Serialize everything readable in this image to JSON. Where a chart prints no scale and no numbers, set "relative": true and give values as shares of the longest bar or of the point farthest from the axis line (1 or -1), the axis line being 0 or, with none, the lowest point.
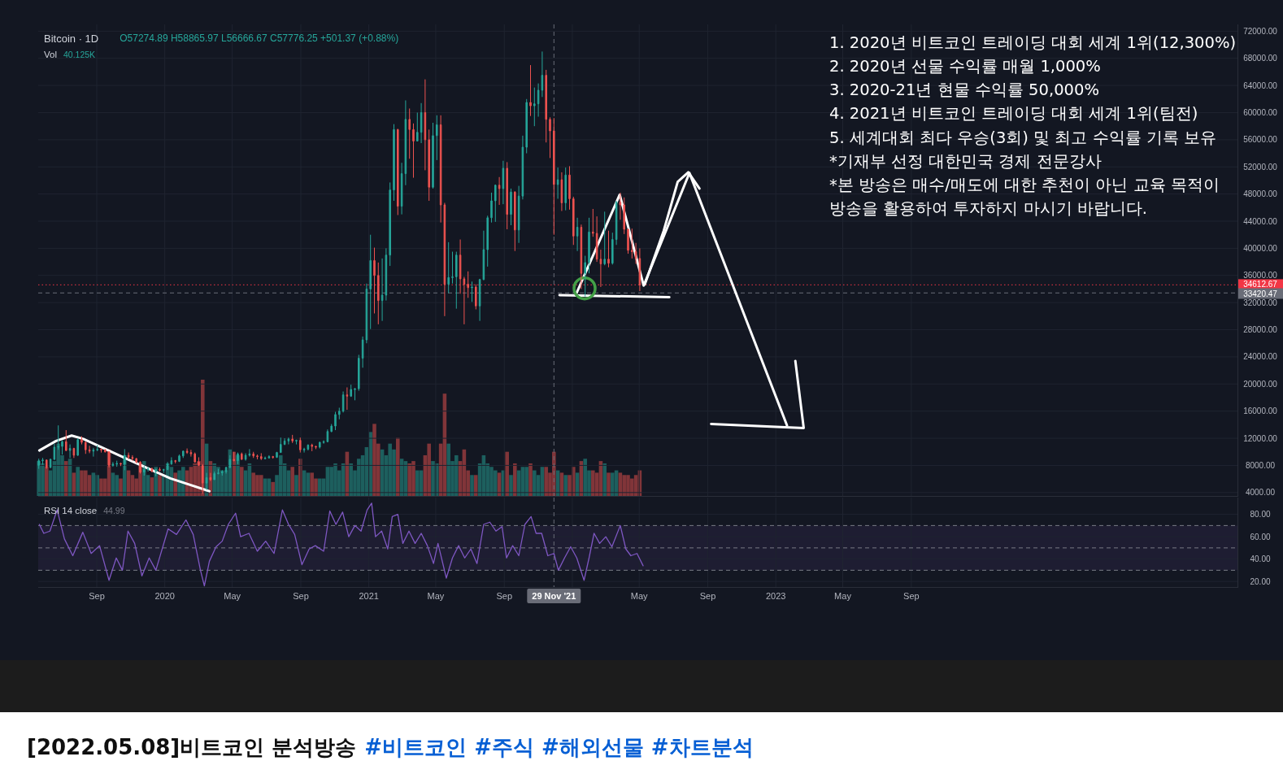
{
  "chart_data": [
    {
      "type": "candlestick",
      "title": "Bitcoin · 1D",
      "subtitle": "O57274.89 H58865.97 L56666.67 C57776.25 +501.37 (+0.88%)",
      "annotations": [
        "1. 2020년 비트코인 트레이딩 대회 세계 1위(12,300%)",
        "2. 2020년 선물 수익률 매월 1,000%",
        "3. 2020-21년 현물 수익률 50,000%",
        "4. 2021년 비트코인 트레이딩 대회 세계 1위(팀전)",
        "5. 세계대회 최다 우승(3회) 및 최고 수익률 기록 보유",
        "*기재부 선정 대한민국 경제 전문강사",
        "*본 방송은 매수/매도에 대한 추천이 아닌 교육 목적이",
        "방송을 활용하여 투자하지 마시기 바랍니다."
      ],
      "x": [
        "2019-05-20",
        "2019-05-27",
        "2019-06-03",
        "2019-06-10",
        "2019-06-17",
        "2019-06-24",
        "2019-07-01",
        "2019-07-08",
        "2019-07-15",
        "2019-07-22",
        "2019-07-29",
        "2019-08-05",
        "2019-08-12",
        "2019-08-19",
        "2019-08-26",
        "2019-09-02",
        "2019-09-09",
        "2019-09-16",
        "2019-09-23",
        "2019-09-30",
        "2019-10-07",
        "2019-10-14",
        "2019-10-21",
        "2019-10-28",
        "2019-11-04",
        "2019-11-11",
        "2019-11-18",
        "2019-11-25",
        "2019-12-02",
        "2019-12-09",
        "2019-12-16",
        "2019-12-23",
        "2019-12-30",
        "2020-01-06",
        "2020-01-13",
        "2020-01-20",
        "2020-01-27",
        "2020-02-03",
        "2020-02-10",
        "2020-02-17",
        "2020-02-24",
        "2020-03-02",
        "2020-03-09",
        "2020-03-16",
        "2020-03-23",
        "2020-03-30",
        "2020-04-06",
        "2020-04-13",
        "2020-04-20",
        "2020-04-27",
        "2020-05-04",
        "2020-05-11",
        "2020-05-18",
        "2020-05-25",
        "2020-06-01",
        "2020-06-08",
        "2020-06-15",
        "2020-06-22",
        "2020-06-29",
        "2020-07-06",
        "2020-07-13",
        "2020-07-20",
        "2020-07-27",
        "2020-08-03",
        "2020-08-10",
        "2020-08-17",
        "2020-08-24",
        "2020-08-31",
        "2020-09-07",
        "2020-09-14",
        "2020-09-21",
        "2020-09-28",
        "2020-10-05",
        "2020-10-12",
        "2020-10-19",
        "2020-10-26",
        "2020-11-02",
        "2020-11-09",
        "2020-11-16",
        "2020-11-23",
        "2020-11-30",
        "2020-12-07",
        "2020-12-14",
        "2020-12-21",
        "2020-12-28",
        "2021-01-04",
        "2021-01-11",
        "2021-01-18",
        "2021-01-25",
        "2021-02-01",
        "2021-02-08",
        "2021-02-15",
        "2021-02-22",
        "2021-03-01",
        "2021-03-08",
        "2021-03-15",
        "2021-03-22",
        "2021-03-29",
        "2021-04-05",
        "2021-04-12",
        "2021-04-19",
        "2021-04-26",
        "2021-05-03",
        "2021-05-10",
        "2021-05-17",
        "2021-05-24",
        "2021-05-31",
        "2021-06-07",
        "2021-06-14",
        "2021-06-21",
        "2021-06-28",
        "2021-07-05",
        "2021-07-12",
        "2021-07-19",
        "2021-07-26",
        "2021-08-02",
        "2021-08-09",
        "2021-08-16",
        "2021-08-23",
        "2021-08-30",
        "2021-09-06",
        "2021-09-13",
        "2021-09-20",
        "2021-09-27",
        "2021-10-04",
        "2021-10-11",
        "2021-10-18",
        "2021-10-25",
        "2021-11-01",
        "2021-11-08",
        "2021-11-15",
        "2021-11-22",
        "2021-11-29",
        "2021-12-06",
        "2021-12-13",
        "2021-12-20",
        "2021-12-27",
        "2022-01-03",
        "2022-01-10",
        "2022-01-17",
        "2022-01-24",
        "2022-01-31",
        "2022-02-07",
        "2022-02-14",
        "2022-02-21",
        "2022-02-28",
        "2022-03-07",
        "2022-03-14",
        "2022-03-21",
        "2022-03-28",
        "2022-04-04",
        "2022-04-11",
        "2022-04-18",
        "2022-04-25",
        "2022-05-02"
      ],
      "ohlc": [
        [
          8000,
          9000,
          7500,
          8700
        ],
        [
          8700,
          9100,
          8100,
          8800
        ],
        [
          8800,
          8800,
          7500,
          7700
        ],
        [
          7700,
          9000,
          7600,
          8900
        ],
        [
          8900,
          11200,
          8800,
          10700
        ],
        [
          10700,
          13900,
          10300,
          10800
        ],
        [
          10800,
          11700,
          9600,
          11500
        ],
        [
          11500,
          13200,
          10100,
          10200
        ],
        [
          10200,
          11100,
          9100,
          10500
        ],
        [
          10500,
          10600,
          9100,
          9500
        ],
        [
          9500,
          12000,
          9400,
          11800
        ],
        [
          11800,
          12300,
          11100,
          11400
        ],
        [
          11400,
          11500,
          9700,
          10300
        ],
        [
          10300,
          10900,
          9800,
          10100
        ],
        [
          10100,
          10600,
          9300,
          10300
        ],
        [
          10300,
          11000,
          10100,
          10400
        ],
        [
          10400,
          10500,
          9900,
          10300
        ],
        [
          10300,
          10400,
          9900,
          10000
        ],
        [
          10000,
          10100,
          7700,
          8000
        ],
        [
          8000,
          8500,
          7800,
          8200
        ],
        [
          8200,
          8700,
          7800,
          8300
        ],
        [
          8300,
          8400,
          7900,
          8200
        ],
        [
          8200,
          10400,
          7300,
          9500
        ],
        [
          9500,
          9900,
          8900,
          9200
        ],
        [
          9200,
          9500,
          8700,
          9000
        ],
        [
          9000,
          9100,
          8300,
          8500
        ],
        [
          8500,
          8600,
          6800,
          7000
        ],
        [
          7000,
          7900,
          6500,
          7400
        ],
        [
          7400,
          7800,
          7100,
          7500
        ],
        [
          7500,
          7700,
          7000,
          7100
        ],
        [
          7100,
          7500,
          6400,
          7400
        ],
        [
          7400,
          7700,
          7100,
          7300
        ],
        [
          7300,
          7500,
          6900,
          7400
        ],
        [
          7400,
          8500,
          7300,
          8200
        ],
        [
          8200,
          9200,
          8100,
          8700
        ],
        [
          8700,
          8800,
          8300,
          8600
        ],
        [
          8600,
          9600,
          8500,
          9400
        ],
        [
          9400,
          10200,
          9100,
          10100
        ],
        [
          10100,
          10500,
          9700,
          9900
        ],
        [
          9900,
          10300,
          9300,
          9700
        ],
        [
          9700,
          9900,
          8400,
          8500
        ],
        [
          8500,
          9200,
          8000,
          8000
        ],
        [
          8000,
          8200,
          3800,
          5400
        ],
        [
          5400,
          6900,
          4400,
          6200
        ],
        [
          6200,
          6900,
          5700,
          5900
        ],
        [
          5900,
          7100,
          5900,
          6800
        ],
        [
          6800,
          7500,
          6700,
          6900
        ],
        [
          6900,
          7300,
          6500,
          7100
        ],
        [
          7100,
          7800,
          6800,
          7700
        ],
        [
          7700,
          9500,
          7600,
          8900
        ],
        [
          8900,
          10000,
          8600,
          8700
        ],
        [
          8700,
          9900,
          8200,
          9700
        ],
        [
          9700,
          9900,
          8800,
          8900
        ],
        [
          8900,
          9800,
          8700,
          9500
        ],
        [
          9500,
          10400,
          9300,
          9700
        ],
        [
          9700,
          10000,
          9100,
          9400
        ],
        [
          9400,
          9600,
          8900,
          9300
        ],
        [
          9300,
          9800,
          8800,
          9000
        ],
        [
          9000,
          9300,
          8900,
          9100
        ],
        [
          9100,
          9500,
          9000,
          9300
        ],
        [
          9300,
          9400,
          9000,
          9200
        ],
        [
          9200,
          10000,
          9100,
          9900
        ],
        [
          9900,
          12100,
          9900,
          11100
        ],
        [
          11100,
          12000,
          11000,
          11600
        ],
        [
          11600,
          12100,
          11100,
          11900
        ],
        [
          11900,
          12500,
          11300,
          11600
        ],
        [
          11600,
          11800,
          11100,
          11700
        ],
        [
          11700,
          12100,
          9900,
          10300
        ],
        [
          10300,
          10600,
          9900,
          10400
        ],
        [
          10400,
          11100,
          10200,
          11000
        ],
        [
          11000,
          11200,
          10100,
          10800
        ],
        [
          10800,
          10900,
          10400,
          10700
        ],
        [
          10700,
          11500,
          10500,
          11400
        ],
        [
          11400,
          11700,
          11200,
          11500
        ],
        [
          11500,
          13300,
          11400,
          13000
        ],
        [
          13000,
          14100,
          12900,
          13800
        ],
        [
          13800,
          15900,
          13200,
          15500
        ],
        [
          15500,
          16500,
          14800,
          16000
        ],
        [
          16000,
          18900,
          15800,
          18400
        ],
        [
          18400,
          19500,
          16200,
          18200
        ],
        [
          18200,
          19900,
          18100,
          19200
        ],
        [
          19200,
          19400,
          17600,
          19300
        ],
        [
          19300,
          24300,
          19000,
          23800
        ],
        [
          23800,
          27000,
          22400,
          26500
        ],
        [
          26500,
          34800,
          26000,
          34000
        ],
        [
          34000,
          42000,
          28100,
          38200
        ],
        [
          38200,
          40100,
          30400,
          36000
        ],
        [
          36000,
          37900,
          28800,
          32300
        ],
        [
          32300,
          38500,
          29300,
          33100
        ],
        [
          33100,
          40000,
          32300,
          39000
        ],
        [
          39000,
          49700,
          37400,
          48600
        ],
        [
          48600,
          58300,
          47000,
          57500
        ],
        [
          57500,
          57600,
          44900,
          46200
        ],
        [
          46200,
          52600,
          45000,
          51000
        ],
        [
          51000,
          61800,
          49300,
          59000
        ],
        [
          59000,
          60600,
          53200,
          57500
        ],
        [
          57500,
          58400,
          50400,
          55800
        ],
        [
          55800,
          60000,
          55800,
          57100
        ],
        [
          57100,
          61400,
          55500,
          60000
        ],
        [
          60000,
          64900,
          51500,
          56000
        ],
        [
          56000,
          57500,
          47000,
          49000
        ],
        [
          49000,
          58500,
          48800,
          56600
        ],
        [
          56600,
          59600,
          53000,
          58200
        ],
        [
          58200,
          59600,
          43800,
          46400
        ],
        [
          46400,
          46700,
          30000,
          34700
        ],
        [
          34700,
          40900,
          33400,
          35700
        ],
        [
          35700,
          39500,
          34800,
          35800
        ],
        [
          35800,
          39500,
          31100,
          39000
        ],
        [
          39000,
          41300,
          33300,
          35500
        ],
        [
          35500,
          35800,
          28800,
          34700
        ],
        [
          34700,
          36600,
          32700,
          34200
        ],
        [
          34200,
          35100,
          32100,
          34300
        ],
        [
          34300,
          34700,
          31000,
          31500
        ],
        [
          31500,
          35500,
          29300,
          35400
        ],
        [
          35400,
          42600,
          35300,
          39800
        ],
        [
          39800,
          44800,
          37300,
          44500
        ],
        [
          44500,
          48200,
          43800,
          47000
        ],
        [
          47000,
          49400,
          43900,
          49300
        ],
        [
          49300,
          50500,
          46400,
          48800
        ],
        [
          48800,
          52900,
          46500,
          51800
        ],
        [
          51800,
          52700,
          42800,
          45000
        ],
        [
          45000,
          48800,
          43400,
          48300
        ],
        [
          48300,
          48400,
          39600,
          42700
        ],
        [
          42700,
          49200,
          40800,
          47700
        ],
        [
          47700,
          56600,
          47200,
          54900
        ],
        [
          54900,
          62000,
          54000,
          61500
        ],
        [
          61500,
          67000,
          59500,
          61000
        ],
        [
          61000,
          63700,
          58000,
          61300
        ],
        [
          61300,
          64300,
          59400,
          63300
        ],
        [
          63300,
          69000,
          62300,
          65500
        ],
        [
          65500,
          66300,
          55600,
          59000
        ],
        [
          59000,
          59300,
          53300,
          57300
        ],
        [
          57300,
          59200,
          42000,
          49400
        ],
        [
          49400,
          51900,
          47300,
          50100
        ],
        [
          50100,
          51200,
          45500,
          46700
        ],
        [
          46700,
          51900,
          45600,
          50800
        ],
        [
          50800,
          52100,
          45700,
          47300
        ],
        [
          47300,
          47600,
          40500,
          41800
        ],
        [
          41800,
          44500,
          39600,
          43100
        ],
        [
          43100,
          43500,
          34000,
          36300
        ],
        [
          36300,
          38900,
          32900,
          37900
        ],
        [
          37900,
          44500,
          36300,
          42400
        ],
        [
          42400,
          45800,
          41700,
          42200
        ],
        [
          42200,
          44700,
          38000,
          38400
        ],
        [
          38400,
          39800,
          34300,
          37700
        ],
        [
          37700,
          45400,
          37500,
          38400
        ],
        [
          38400,
          42600,
          37200,
          37800
        ],
        [
          37800,
          42300,
          37600,
          41300
        ],
        [
          41300,
          47000,
          40500,
          46800
        ],
        [
          46800,
          48200,
          44200,
          46400
        ],
        [
          46400,
          47500,
          42100,
          42800
        ],
        [
          42800,
          42900,
          39200,
          39700
        ],
        [
          39700,
          42900,
          38500,
          39500
        ],
        [
          39500,
          40800,
          37700,
          38500
        ],
        [
          38500,
          40000,
          33700,
          34600
        ]
      ],
      "colors": [
        "#26a69a",
        "#26a69a",
        "#ef5350",
        "#26a69a",
        "#26a69a",
        "#26a69a",
        "#26a69a",
        "#ef5350",
        "#26a69a",
        "#ef5350",
        "#26a69a",
        "#ef5350",
        "#ef5350",
        "#ef5350",
        "#26a69a",
        "#26a69a",
        "#ef5350",
        "#ef5350",
        "#ef5350",
        "#26a69a",
        "#26a69a",
        "#ef5350",
        "#26a69a",
        "#ef5350",
        "#ef5350",
        "#ef5350",
        "#ef5350",
        "#26a69a",
        "#26a69a",
        "#ef5350",
        "#26a69a",
        "#ef5350",
        "#26a69a",
        "#26a69a",
        "#26a69a",
        "#ef5350",
        "#26a69a",
        "#26a69a",
        "#ef5350",
        "#ef5350",
        "#ef5350",
        "#ef5350",
        "#ef5350",
        "#26a69a",
        "#ef5350",
        "#26a69a",
        "#26a69a",
        "#26a69a",
        "#26a69a",
        "#26a69a",
        "#ef5350",
        "#26a69a",
        "#ef5350",
        "#26a69a",
        "#26a69a",
        "#ef5350",
        "#ef5350",
        "#ef5350",
        "#26a69a",
        "#26a69a",
        "#ef5350",
        "#26a69a",
        "#26a69a",
        "#26a69a",
        "#26a69a",
        "#ef5350",
        "#26a69a",
        "#ef5350",
        "#26a69a",
        "#26a69a",
        "#ef5350",
        "#ef5350",
        "#26a69a",
        "#26a69a",
        "#26a69a",
        "#26a69a",
        "#26a69a",
        "#26a69a",
        "#26a69a",
        "#ef5350",
        "#26a69a",
        "#26a69a",
        "#26a69a",
        "#26a69a",
        "#26a69a",
        "#26a69a",
        "#ef5350",
        "#ef5350",
        "#26a69a",
        "#26a69a",
        "#26a69a",
        "#26a69a",
        "#ef5350",
        "#26a69a",
        "#26a69a",
        "#ef5350",
        "#ef5350",
        "#26a69a",
        "#26a69a",
        "#ef5350",
        "#ef5350",
        "#26a69a",
        "#26a69a",
        "#ef5350",
        "#ef5350",
        "#26a69a",
        "#26a69a",
        "#26a69a",
        "#ef5350",
        "#ef5350",
        "#ef5350",
        "#26a69a",
        "#ef5350",
        "#26a69a",
        "#26a69a",
        "#26a69a",
        "#26a69a",
        "#26a69a",
        "#ef5350",
        "#26a69a",
        "#ef5350",
        "#26a69a",
        "#ef5350",
        "#26a69a",
        "#26a69a",
        "#26a69a",
        "#ef5350",
        "#26a69a",
        "#26a69a",
        "#26a69a",
        "#ef5350",
        "#ef5350",
        "#ef5350",
        "#26a69a",
        "#ef5350",
        "#26a69a",
        "#ef5350",
        "#ef5350",
        "#26a69a",
        "#ef5350",
        "#26a69a",
        "#26a69a",
        "#ef5350",
        "#ef5350",
        "#ef5350",
        "#26a69a",
        "#ef5350",
        "#26a69a",
        "#26a69a",
        "#ef5350",
        "#ef5350",
        "#ef5350",
        "#ef5350",
        "#ef5350",
        "#ef5350"
      ],
      "xlim": [
        "2019-05-19",
        "2025-04-08"
      ],
      "ylim": [
        3500,
        73000
      ],
      "xticks": [
        {
          "value": "2019-09-01",
          "label": null
        },
        {
          "value": "2020-01-01",
          "label": null
        },
        {
          "value": "2020-05-01",
          "label": null
        },
        {
          "value": "2020-09-01",
          "label": null
        },
        {
          "value": "2021-01-01",
          "label": null
        },
        {
          "value": "2021-05-01",
          "label": null
        },
        {
          "value": "2021-09-01",
          "label": null
        },
        {
          "value": "2022-01-01",
          "label": null
        },
        {
          "value": "2022-05-01",
          "label": null
        },
        {
          "value": "2022-09-01",
          "label": null
        },
        {
          "value": "2023-01-01",
          "label": null
        },
        {
          "value": "2023-05-01",
          "label": null
        },
        {
          "value": "2023-09-01",
          "label": null
        }
      ],
      "yticks": [
        {
          "value": 4000,
          "label": "4000.00"
        },
        {
          "value": 8000,
          "label": "8000.00"
        },
        {
          "value": 12000,
          "label": "12000.00"
        },
        {
          "value": 16000,
          "label": "16000.00"
        },
        {
          "value": 20000,
          "label": "20000.00"
        },
        {
          "value": 24000,
          "label": "24000.00"
        },
        {
          "value": 28000,
          "label": "28000.00"
        },
        {
          "value": 32000,
          "label": "32000.00"
        },
        {
          "value": 36000,
          "label": "36000.00"
        },
        {
          "value": 40000,
          "label": "40000.00"
        },
        {
          "value": 44000,
          "label": "44000.00"
        },
        {
          "value": 48000,
          "label": "48000.00"
        },
        {
          "value": 52000,
          "label": "52000.00"
        },
        {
          "value": 56000,
          "label": "56000.00"
        },
        {
          "value": 60000,
          "label": "60000.00"
        },
        {
          "value": 64000,
          "label": "64000.00"
        },
        {
          "value": 68000,
          "label": "68000.00"
        },
        {
          "value": 72000,
          "label": "72000.00"
        }
      ],
      "grid": true,
      "tick_labels": "y",
      "ref_lines": [
        {
          "axis": "y",
          "value": 34612.67,
          "label": "34612.67",
          "color": "#f23645",
          "line_style": "dotted"
        },
        {
          "axis": "y",
          "value": 33420.47,
          "label": "33420.47",
          "color": "#6a6d78",
          "line_style": "dashed"
        },
        {
          "axis": "x",
          "value": "2021-11-29",
          "color": "#6a6d78",
          "line_style": "dashed"
        }
      ],
      "series": [
        {
          "type": "line",
          "color": "#ffffff",
          "x": [
            "2019-05-21",
            "2019-06-20",
            "2019-07-18",
            "2019-08-08",
            "2019-11-01",
            "2020-01-11",
            "2020-03-21"
          ],
          "values": [
            10200,
            11600,
            12400,
            11900,
            8700,
            6100,
            4200
          ]
        },
        {
          "type": "line",
          "color": "#ffffff",
          "x": [
            "2021-12-09",
            "2022-06-24"
          ],
          "values": [
            33100,
            32800
          ]
        },
        {
          "type": "line",
          "color": "#ffffff",
          "x": [
            "2022-01-07",
            "2022-03-27",
            "2022-05-09",
            "2022-07-30",
            "2023-01-21"
          ],
          "values": [
            33100,
            47900,
            34500,
            51100,
            13900
          ]
        },
        {
          "type": "line",
          "color": "#ffffff",
          "x": [
            "2022-05-11",
            "2022-06-14",
            "2022-07-09",
            "2022-07-28",
            "2022-08-17"
          ],
          "values": [
            34700,
            42600,
            49800,
            51200,
            48800
          ]
        },
        {
          "type": "line",
          "color": "#ffffff",
          "x": [
            "2022-09-07",
            "2023-02-20",
            "2023-02-05"
          ],
          "values": [
            14100,
            13500,
            23400
          ]
        },
        {
          "type": "scatter",
          "color": "#43a047",
          "marker": "circle",
          "x": [
            "2022-01-23"
          ],
          "values": [
            34100
          ]
        }
      ]
    },
    {
      "type": "bar",
      "title": "Vol",
      "subtitle": "40.125K",
      "relative": true,
      "x": [
        "2019-05-20",
        "2019-05-27",
        "2019-06-03",
        "2019-06-10",
        "2019-06-17",
        "2019-06-24",
        "2019-07-01",
        "2019-07-08",
        "2019-07-15",
        "2019-07-22",
        "2019-07-29",
        "2019-08-05",
        "2019-08-12",
        "2019-08-19",
        "2019-08-26",
        "2019-09-02",
        "2019-09-09",
        "2019-09-16",
        "2019-09-23",
        "2019-09-30",
        "2019-10-07",
        "2019-10-14",
        "2019-10-21",
        "2019-10-28",
        "2019-11-04",
        "2019-11-11",
        "2019-11-18",
        "2019-11-25",
        "2019-12-02",
        "2019-12-09",
        "2019-12-16",
        "2019-12-23",
        "2019-12-30",
        "2020-01-06",
        "2020-01-13",
        "2020-01-20",
        "2020-01-27",
        "2020-02-03",
        "2020-02-10",
        "2020-02-17",
        "2020-02-24",
        "2020-03-02",
        "2020-03-09",
        "2020-03-16",
        "2020-03-23",
        "2020-03-30",
        "2020-04-06",
        "2020-04-13",
        "2020-04-20",
        "2020-04-27",
        "2020-05-04",
        "2020-05-11",
        "2020-05-18",
        "2020-05-25",
        "2020-06-01",
        "2020-06-08",
        "2020-06-15",
        "2020-06-22",
        "2020-06-29",
        "2020-07-06",
        "2020-07-13",
        "2020-07-20",
        "2020-07-27",
        "2020-08-03",
        "2020-08-10",
        "2020-08-17",
        "2020-08-24",
        "2020-08-31",
        "2020-09-07",
        "2020-09-14",
        "2020-09-21",
        "2020-09-28",
        "2020-10-05",
        "2020-10-12",
        "2020-10-19",
        "2020-10-26",
        "2020-11-02",
        "2020-11-09",
        "2020-11-16",
        "2020-11-23",
        "2020-11-30",
        "2020-12-07",
        "2020-12-14",
        "2020-12-21",
        "2020-12-28",
        "2021-01-04",
        "2021-01-11",
        "2021-01-18",
        "2021-01-25",
        "2021-02-01",
        "2021-02-08",
        "2021-02-15",
        "2021-02-22",
        "2021-03-01",
        "2021-03-08",
        "2021-03-15",
        "2021-03-22",
        "2021-03-29",
        "2021-04-05",
        "2021-04-12",
        "2021-04-19",
        "2021-04-26",
        "2021-05-03",
        "2021-05-10",
        "2021-05-17",
        "2021-05-24",
        "2021-05-31",
        "2021-06-07",
        "2021-06-14",
        "2021-06-21",
        "2021-06-28",
        "2021-07-05",
        "2021-07-12",
        "2021-07-19",
        "2021-07-26",
        "2021-08-02",
        "2021-08-09",
        "2021-08-16",
        "2021-08-23",
        "2021-08-30",
        "2021-09-06",
        "2021-09-13",
        "2021-09-20",
        "2021-09-27",
        "2021-10-04",
        "2021-10-11",
        "2021-10-18",
        "2021-10-25",
        "2021-11-01",
        "2021-11-08",
        "2021-11-15",
        "2021-11-22",
        "2021-11-29",
        "2021-12-06",
        "2021-12-13",
        "2021-12-20",
        "2021-12-27",
        "2022-01-03",
        "2022-01-10",
        "2022-01-17",
        "2022-01-24",
        "2022-01-31",
        "2022-02-07",
        "2022-02-14",
        "2022-02-21",
        "2022-02-28",
        "2022-03-07",
        "2022-03-14",
        "2022-03-21",
        "2022-03-28",
        "2022-04-04",
        "2022-04-11",
        "2022-04-18",
        "2022-04-25",
        "2022-05-02"
      ],
      "values": [
        0.3,
        0.28,
        0.25,
        0.22,
        0.3,
        0.45,
        0.35,
        0.3,
        0.32,
        0.2,
        0.25,
        0.22,
        0.22,
        0.18,
        0.2,
        0.18,
        0.15,
        0.15,
        0.4,
        0.2,
        0.18,
        0.15,
        0.35,
        0.22,
        0.18,
        0.15,
        0.28,
        0.3,
        0.18,
        0.16,
        0.25,
        0.18,
        0.18,
        0.28,
        0.25,
        0.2,
        0.22,
        0.25,
        0.22,
        0.25,
        0.28,
        0.3,
        1,
        0.45,
        0.3,
        0.28,
        0.25,
        0.22,
        0.22,
        0.4,
        0.38,
        0.35,
        0.25,
        0.22,
        0.28,
        0.2,
        0.18,
        0.18,
        0.15,
        0.15,
        0.12,
        0.18,
        0.35,
        0.28,
        0.22,
        0.25,
        0.18,
        0.32,
        0.22,
        0.2,
        0.2,
        0.15,
        0.15,
        0.15,
        0.25,
        0.25,
        0.28,
        0.22,
        0.28,
        0.38,
        0.28,
        0.22,
        0.32,
        0.35,
        0.42,
        0.55,
        0.62,
        0.45,
        0.4,
        0.35,
        0.45,
        0.4,
        0.5,
        0.32,
        0.3,
        0.28,
        0.3,
        0.22,
        0.22,
        0.35,
        0.45,
        0.3,
        0.28,
        0.45,
        0.88,
        0.45,
        0.3,
        0.35,
        0.3,
        0.4,
        0.22,
        0.18,
        0.18,
        0.28,
        0.35,
        0.28,
        0.25,
        0.22,
        0.2,
        0.22,
        0.38,
        0.18,
        0.28,
        0.22,
        0.25,
        0.25,
        0.28,
        0.22,
        0.18,
        0.25,
        0.25,
        0.2,
        0.38,
        0.22,
        0.2,
        0.18,
        0.18,
        0.25,
        0.2,
        0.3,
        0.32,
        0.22,
        0.22,
        0.2,
        0.3,
        0.28,
        0.2,
        0.2,
        0.22,
        0.2,
        0.18,
        0.18,
        0.15,
        0.18,
        0.22
      ],
      "colors": [
        "#1d5f5e",
        "#1d5f5e",
        "#813539",
        "#1d5f5e",
        "#1d5f5e",
        "#1d5f5e",
        "#1d5f5e",
        "#813539",
        "#1d5f5e",
        "#813539",
        "#1d5f5e",
        "#813539",
        "#813539",
        "#813539",
        "#1d5f5e",
        "#1d5f5e",
        "#813539",
        "#813539",
        "#813539",
        "#1d5f5e",
        "#1d5f5e",
        "#813539",
        "#1d5f5e",
        "#813539",
        "#813539",
        "#813539",
        "#813539",
        "#1d5f5e",
        "#1d5f5e",
        "#813539",
        "#1d5f5e",
        "#813539",
        "#1d5f5e",
        "#1d5f5e",
        "#1d5f5e",
        "#813539",
        "#1d5f5e",
        "#1d5f5e",
        "#813539",
        "#813539",
        "#813539",
        "#813539",
        "#813539",
        "#1d5f5e",
        "#813539",
        "#1d5f5e",
        "#1d5f5e",
        "#1d5f5e",
        "#1d5f5e",
        "#1d5f5e",
        "#813539",
        "#1d5f5e",
        "#813539",
        "#1d5f5e",
        "#1d5f5e",
        "#813539",
        "#813539",
        "#813539",
        "#1d5f5e",
        "#1d5f5e",
        "#813539",
        "#1d5f5e",
        "#1d5f5e",
        "#1d5f5e",
        "#1d5f5e",
        "#813539",
        "#1d5f5e",
        "#813539",
        "#1d5f5e",
        "#1d5f5e",
        "#813539",
        "#813539",
        "#1d5f5e",
        "#1d5f5e",
        "#1d5f5e",
        "#1d5f5e",
        "#1d5f5e",
        "#1d5f5e",
        "#1d5f5e",
        "#813539",
        "#1d5f5e",
        "#1d5f5e",
        "#1d5f5e",
        "#1d5f5e",
        "#1d5f5e",
        "#1d5f5e",
        "#813539",
        "#813539",
        "#1d5f5e",
        "#1d5f5e",
        "#1d5f5e",
        "#1d5f5e",
        "#813539",
        "#1d5f5e",
        "#1d5f5e",
        "#813539",
        "#813539",
        "#1d5f5e",
        "#1d5f5e",
        "#813539",
        "#813539",
        "#1d5f5e",
        "#1d5f5e",
        "#813539",
        "#813539",
        "#1d5f5e",
        "#1d5f5e",
        "#1d5f5e",
        "#813539",
        "#813539",
        "#813539",
        "#1d5f5e",
        "#813539",
        "#1d5f5e",
        "#1d5f5e",
        "#1d5f5e",
        "#1d5f5e",
        "#1d5f5e",
        "#813539",
        "#1d5f5e",
        "#813539",
        "#1d5f5e",
        "#813539",
        "#1d5f5e",
        "#1d5f5e",
        "#1d5f5e",
        "#813539",
        "#1d5f5e",
        "#1d5f5e",
        "#1d5f5e",
        "#813539",
        "#813539",
        "#813539",
        "#1d5f5e",
        "#813539",
        "#1d5f5e",
        "#813539",
        "#813539",
        "#1d5f5e",
        "#813539",
        "#1d5f5e",
        "#1d5f5e",
        "#813539",
        "#813539",
        "#813539",
        "#1d5f5e",
        "#813539",
        "#1d5f5e",
        "#1d5f5e",
        "#813539",
        "#813539",
        "#813539",
        "#813539",
        "#813539",
        "#813539"
      ],
      "xlim": [
        "2019-05-19",
        "2025-04-08"
      ],
      "tick_labels": false
    },
    {
      "type": "line",
      "title": "RSI 14 close",
      "subtitle": "44.99",
      "annotations": [
        "[2022.05.08]비트코인 분석방송",
        "#비트코인 #주식 #해외선물 #차트분석"
      ],
      "x": [
        "2019-05-21",
        "2019-05-29",
        "2019-06-09",
        "2019-06-22",
        "2019-07-05",
        "2019-07-20",
        "2019-08-07",
        "2019-08-22",
        "2019-09-06",
        "2019-09-23",
        "2019-10-06",
        "2019-10-17",
        "2019-10-27",
        "2019-11-08",
        "2019-11-21",
        "2019-12-04",
        "2019-12-16",
        "2020-01-07",
        "2020-01-22",
        "2020-02-08",
        "2020-02-21",
        "2020-03-05",
        "2020-03-12",
        "2020-03-21",
        "2020-04-02",
        "2020-04-13",
        "2020-04-24",
        "2020-05-07",
        "2020-05-16",
        "2020-05-31",
        "2020-06-15",
        "2020-06-30",
        "2020-07-15",
        "2020-07-30",
        "2020-08-10",
        "2020-08-21",
        "2020-09-03",
        "2020-09-16",
        "2020-09-27",
        "2020-10-12",
        "2020-10-23",
        "2020-11-03",
        "2020-11-15",
        "2020-11-26",
        "2020-12-07",
        "2020-12-18",
        "2020-12-29",
        "2021-01-06",
        "2021-01-13",
        "2021-01-24",
        "2021-02-04",
        "2021-02-12",
        "2021-02-22",
        "2021-03-03",
        "2021-03-14",
        "2021-03-25",
        "2021-04-05",
        "2021-04-16",
        "2021-04-27",
        "2021-05-05",
        "2021-05-20",
        "2021-05-31",
        "2021-06-11",
        "2021-06-22",
        "2021-07-03",
        "2021-07-14",
        "2021-07-26",
        "2021-08-06",
        "2021-08-17",
        "2021-08-28",
        "2021-09-05",
        "2021-09-16",
        "2021-09-27",
        "2021-10-08",
        "2021-10-19",
        "2021-10-28",
        "2021-11-07",
        "2021-11-18",
        "2021-11-29",
        "2021-12-07",
        "2021-12-18",
        "2021-12-29",
        "2022-01-09",
        "2022-01-22",
        "2022-01-31",
        "2022-02-09",
        "2022-02-19",
        "2022-03-02",
        "2022-03-13",
        "2022-03-28",
        "2022-04-07",
        "2022-04-16",
        "2022-04-27",
        "2022-05-08"
      ],
      "values": [
        71,
        63,
        65,
        84,
        58,
        43,
        64,
        45,
        52,
        21,
        41,
        30,
        65,
        54,
        25,
        41,
        30,
        67,
        62,
        75,
        62,
        30,
        16,
        38,
        51,
        56,
        71,
        81,
        60,
        63,
        47,
        56,
        45,
        84,
        71,
        62,
        35,
        49,
        52,
        47,
        83,
        71,
        82,
        60,
        70,
        65,
        84,
        90,
        60,
        65,
        49,
        78,
        80,
        54,
        65,
        54,
        63,
        52,
        36,
        54,
        23,
        41,
        52,
        41,
        49,
        36,
        71,
        73,
        65,
        69,
        41,
        52,
        43,
        71,
        78,
        63,
        63,
        43,
        45,
        30,
        41,
        51,
        41,
        21,
        41,
        63,
        54,
        60,
        51,
        70,
        49,
        43,
        45,
        34
      ],
      "color": "#7e57c2",
      "xlim": [
        "2019-05-19",
        "2025-04-08"
      ],
      "ylim": [
        15,
        95
      ],
      "xticks": [
        {
          "value": "2019-09-01",
          "label": "Sep"
        },
        {
          "value": "2020-01-01",
          "label": "2020"
        },
        {
          "value": "2020-05-01",
          "label": "May"
        },
        {
          "value": "2020-09-01",
          "label": "Sep"
        },
        {
          "value": "2021-01-01",
          "label": "2021"
        },
        {
          "value": "2021-05-01",
          "label": "May"
        },
        {
          "value": "2021-09-01",
          "label": "Sep"
        },
        {
          "value": "2022-01-01",
          "label": null
        },
        {
          "value": "2022-05-01",
          "label": "May"
        },
        {
          "value": "2022-09-01",
          "label": "Sep"
        },
        {
          "value": "2023-01-01",
          "label": "2023"
        },
        {
          "value": "2023-05-01",
          "label": "May"
        },
        {
          "value": "2023-09-01",
          "label": "Sep"
        }
      ],
      "yticks": [
        {
          "value": 20,
          "label": "20.00"
        },
        {
          "value": 40,
          "label": "40.00"
        },
        {
          "value": 60,
          "label": "60.00"
        },
        {
          "value": 80,
          "label": "80.00"
        }
      ],
      "grid": true,
      "ref_lines": [
        {
          "axis": "y",
          "value": 70,
          "color": "#787b86",
          "line_style": "dashed"
        },
        {
          "axis": "y",
          "value": 50,
          "color": "#787b86",
          "line_style": "dashed"
        },
        {
          "axis": "y",
          "value": 30,
          "color": "#787b86",
          "line_style": "dashed"
        },
        {
          "axis": "x",
          "value": "2021-11-29",
          "label": "29 Nov '21",
          "color": "#6a6d78",
          "line_style": "dashed"
        }
      ],
      "bands": [
        {
          "axis": "y",
          "from": 30,
          "to": 70,
          "color": "#1e1d32"
        }
      ]
    }
  ]
}
